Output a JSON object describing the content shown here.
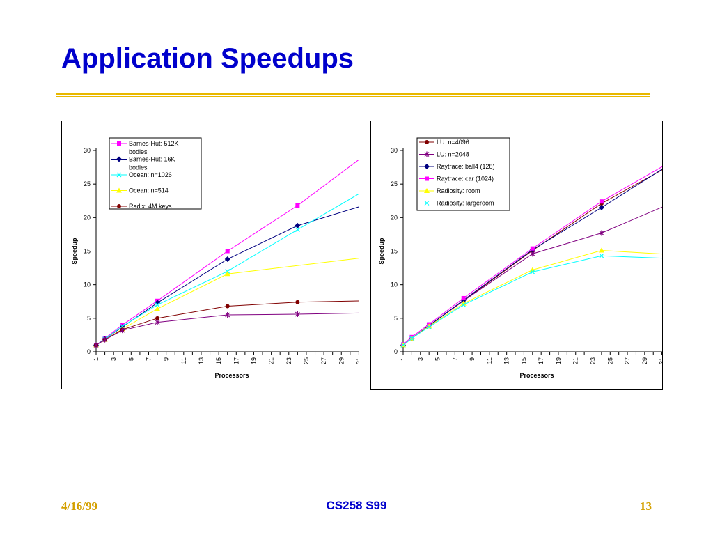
{
  "slide": {
    "title": "Application Speedups",
    "footer_left": "4/16/99",
    "footer_center": "CS258 S99",
    "footer_right": "13"
  },
  "chart_data": [
    {
      "type": "line",
      "xlabel": "Processors",
      "ylabel": "Speedup",
      "ylim": [
        0,
        30
      ],
      "yticks": [
        0,
        5,
        10,
        15,
        20,
        25,
        30
      ],
      "xlim": [
        1,
        32
      ],
      "xticks": [
        1,
        3,
        5,
        7,
        9,
        11,
        13,
        15,
        17,
        19,
        21,
        23,
        25,
        27,
        29,
        31
      ],
      "legend_position": "top-left",
      "series": [
        {
          "name": "Barnes-Hut: 512K bodies",
          "color": "#ff00ff",
          "marker": "square",
          "x": [
            1,
            2,
            4,
            8,
            16,
            24,
            32
          ],
          "values": [
            1.0,
            2.0,
            4.0,
            7.6,
            15.0,
            21.8,
            29.6
          ]
        },
        {
          "name": "Barnes-Hut: 16K bodies",
          "color": "#000080",
          "marker": "diamond",
          "x": [
            1,
            2,
            4,
            8,
            16,
            24,
            32
          ],
          "values": [
            1.0,
            1.9,
            3.7,
            7.3,
            13.8,
            18.8,
            22.0
          ]
        },
        {
          "name": "Ocean: n=1026",
          "color": "#00ffff",
          "marker": "x",
          "x": [
            1,
            2,
            4,
            8,
            16,
            24,
            32
          ],
          "values": [
            1.0,
            1.9,
            3.8,
            7.0,
            12.0,
            18.2,
            24.3
          ]
        },
        {
          "name": "Ocean: n=514",
          "color": "#ffff00",
          "marker": "triangle",
          "x": [
            1,
            2,
            4,
            8,
            16,
            32
          ],
          "values": [
            1.0,
            1.8,
            3.4,
            6.4,
            11.6,
            14.1
          ]
        },
        {
          "name": "Radix: 4M keys",
          "color": "#800000",
          "marker": "circle",
          "x": [
            1,
            2,
            4,
            8,
            16,
            24,
            32
          ],
          "values": [
            1.0,
            1.8,
            3.3,
            5.0,
            6.8,
            7.4,
            7.6
          ]
        },
        {
          "name": "",
          "color": "#800080",
          "marker": "star",
          "x": [
            1,
            2,
            4,
            8,
            16,
            24,
            32
          ],
          "values": [
            1.0,
            1.8,
            3.2,
            4.4,
            5.5,
            5.6,
            5.8
          ]
        }
      ]
    },
    {
      "type": "line",
      "xlabel": "Processors",
      "ylabel": "Speedup",
      "ylim": [
        0,
        30
      ],
      "yticks": [
        0,
        5,
        10,
        15,
        20,
        25,
        30
      ],
      "xlim": [
        1,
        32
      ],
      "xticks": [
        1,
        3,
        5,
        7,
        9,
        11,
        13,
        15,
        17,
        19,
        21,
        23,
        25,
        27,
        29,
        31
      ],
      "legend_position": "top-right",
      "series": [
        {
          "name": "LU: n=4096",
          "color": "#800000",
          "marker": "circle",
          "x": [
            1,
            2,
            4,
            8,
            16,
            24,
            32
          ],
          "values": [
            1.0,
            2.0,
            3.9,
            7.6,
            15.1,
            22.1,
            27.8
          ]
        },
        {
          "name": "LU: n=2048",
          "color": "#800080",
          "marker": "star",
          "x": [
            1,
            2,
            4,
            8,
            16,
            24,
            32
          ],
          "values": [
            1.0,
            2.0,
            3.9,
            7.6,
            14.6,
            17.7,
            22.1
          ]
        },
        {
          "name": "Raytrace: ball4 (128)",
          "color": "#000080",
          "marker": "diamond",
          "x": [
            1,
            2,
            4,
            8,
            16,
            24,
            32
          ],
          "values": [
            1.0,
            2.0,
            3.9,
            7.7,
            15.2,
            21.5,
            28.0
          ]
        },
        {
          "name": "Raytrace: car (1024)",
          "color": "#ff00ff",
          "marker": "square",
          "x": [
            1,
            2,
            4,
            8,
            16,
            24,
            32
          ],
          "values": [
            1.1,
            2.2,
            4.1,
            8.0,
            15.4,
            22.4,
            28.3
          ]
        },
        {
          "name": "Radiosity: room",
          "color": "#ffff00",
          "marker": "triangle",
          "x": [
            1,
            2,
            4,
            8,
            16,
            24,
            32
          ],
          "values": [
            1.0,
            2.0,
            3.8,
            7.2,
            12.2,
            15.1,
            14.5
          ]
        },
        {
          "name": "Radiosity: largeroom",
          "color": "#00ffff",
          "marker": "x",
          "x": [
            1,
            2,
            4,
            8,
            16,
            24,
            32
          ],
          "values": [
            1.0,
            2.0,
            3.7,
            7.0,
            11.9,
            14.3,
            13.9
          ]
        }
      ]
    }
  ]
}
